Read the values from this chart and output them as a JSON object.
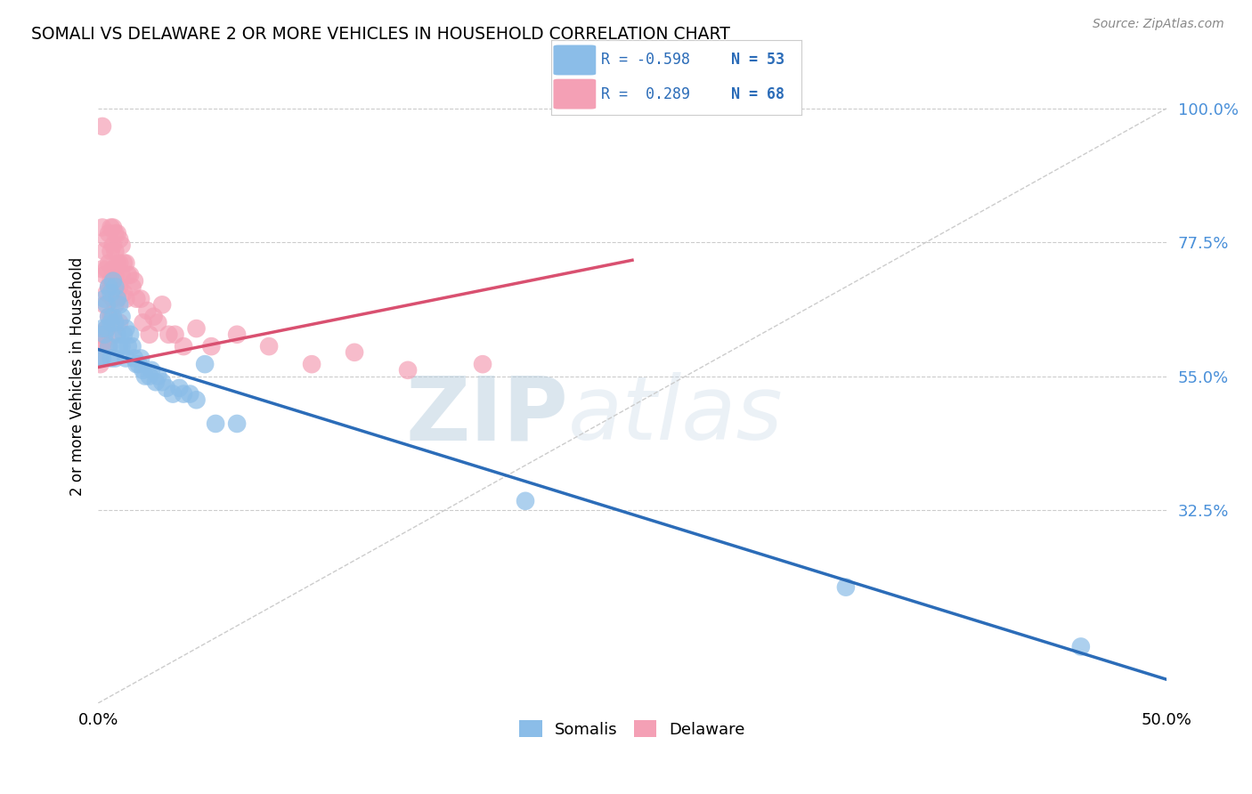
{
  "title": "SOMALI VS DELAWARE 2 OR MORE VEHICLES IN HOUSEHOLD CORRELATION CHART",
  "source": "Source: ZipAtlas.com",
  "ylabel": "2 or more Vehicles in Household",
  "yticks": [
    0.0,
    0.325,
    0.55,
    0.775,
    1.0
  ],
  "ytick_labels": [
    "",
    "32.5%",
    "55.0%",
    "77.5%",
    "100.0%"
  ],
  "xmin": 0.0,
  "xmax": 0.5,
  "ymin": 0.0,
  "ymax": 1.1,
  "legend_blue_r": "R = -0.598",
  "legend_blue_n": "N = 53",
  "legend_pink_r": "R =  0.289",
  "legend_pink_n": "N = 68",
  "blue_color": "#8BBDE8",
  "pink_color": "#F4A0B5",
  "blue_line_color": "#2B6CB8",
  "pink_line_color": "#D95070",
  "watermark_zip": "ZIP",
  "watermark_atlas": "atlas",
  "somali_x": [
    0.001,
    0.002,
    0.002,
    0.003,
    0.003,
    0.004,
    0.004,
    0.005,
    0.005,
    0.005,
    0.006,
    0.006,
    0.006,
    0.007,
    0.007,
    0.008,
    0.008,
    0.008,
    0.009,
    0.009,
    0.01,
    0.01,
    0.011,
    0.011,
    0.012,
    0.013,
    0.013,
    0.014,
    0.015,
    0.016,
    0.017,
    0.018,
    0.019,
    0.02,
    0.021,
    0.022,
    0.024,
    0.025,
    0.027,
    0.028,
    0.03,
    0.032,
    0.035,
    0.038,
    0.04,
    0.043,
    0.046,
    0.05,
    0.055,
    0.065,
    0.2,
    0.35,
    0.46
  ],
  "somali_y": [
    0.58,
    0.63,
    0.58,
    0.68,
    0.62,
    0.67,
    0.63,
    0.7,
    0.65,
    0.6,
    0.69,
    0.64,
    0.58,
    0.71,
    0.65,
    0.7,
    0.64,
    0.58,
    0.68,
    0.62,
    0.67,
    0.6,
    0.65,
    0.6,
    0.62,
    0.63,
    0.58,
    0.6,
    0.62,
    0.6,
    0.58,
    0.57,
    0.57,
    0.58,
    0.56,
    0.55,
    0.55,
    0.56,
    0.54,
    0.55,
    0.54,
    0.53,
    0.52,
    0.53,
    0.52,
    0.52,
    0.51,
    0.57,
    0.47,
    0.47,
    0.34,
    0.195,
    0.095
  ],
  "delaware_x": [
    0.001,
    0.001,
    0.002,
    0.002,
    0.002,
    0.002,
    0.003,
    0.003,
    0.003,
    0.003,
    0.004,
    0.004,
    0.004,
    0.004,
    0.005,
    0.005,
    0.005,
    0.005,
    0.005,
    0.006,
    0.006,
    0.006,
    0.006,
    0.007,
    0.007,
    0.007,
    0.007,
    0.007,
    0.008,
    0.008,
    0.008,
    0.008,
    0.009,
    0.009,
    0.009,
    0.01,
    0.01,
    0.01,
    0.01,
    0.011,
    0.011,
    0.012,
    0.012,
    0.013,
    0.013,
    0.014,
    0.015,
    0.016,
    0.017,
    0.018,
    0.02,
    0.021,
    0.023,
    0.024,
    0.026,
    0.028,
    0.03,
    0.033,
    0.036,
    0.04,
    0.046,
    0.053,
    0.065,
    0.08,
    0.1,
    0.12,
    0.145,
    0.18
  ],
  "delaware_y": [
    0.62,
    0.57,
    0.97,
    0.8,
    0.73,
    0.6,
    0.76,
    0.72,
    0.67,
    0.61,
    0.78,
    0.73,
    0.69,
    0.63,
    0.79,
    0.74,
    0.7,
    0.65,
    0.6,
    0.8,
    0.76,
    0.71,
    0.65,
    0.8,
    0.77,
    0.73,
    0.68,
    0.62,
    0.79,
    0.76,
    0.72,
    0.67,
    0.79,
    0.74,
    0.69,
    0.78,
    0.74,
    0.7,
    0.64,
    0.77,
    0.72,
    0.74,
    0.69,
    0.74,
    0.68,
    0.72,
    0.72,
    0.7,
    0.71,
    0.68,
    0.68,
    0.64,
    0.66,
    0.62,
    0.65,
    0.64,
    0.67,
    0.62,
    0.62,
    0.6,
    0.63,
    0.6,
    0.62,
    0.6,
    0.57,
    0.59,
    0.56,
    0.57
  ],
  "blue_line_x": [
    0.0,
    0.5
  ],
  "blue_line_y": [
    0.595,
    0.04
  ],
  "pink_line_x": [
    0.0,
    0.25
  ],
  "pink_line_y": [
    0.565,
    0.745
  ],
  "diag_line_x": [
    0.0,
    0.5
  ],
  "diag_line_y": [
    0.0,
    1.0
  ]
}
